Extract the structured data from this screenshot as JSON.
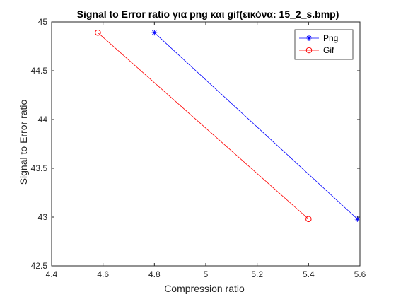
{
  "chart_data": {
    "type": "line",
    "title": "Signal to Error ratio για png και gif(εικόνα: 15_2_s.bmp)",
    "xlabel": "Compression ratio",
    "ylabel": "Signal to Error ratio",
    "xlim": [
      4.4,
      5.6
    ],
    "ylim": [
      42.5,
      45
    ],
    "xticks": [
      "4.4",
      "4.6",
      "4.8",
      "5",
      "5.2",
      "5.4",
      "5.6"
    ],
    "yticks": [
      "42.5",
      "43",
      "43.5",
      "44",
      "44.5",
      "45"
    ],
    "grid": false,
    "legend_position": "top-right",
    "series": [
      {
        "name": "Png",
        "color": "#0000ff",
        "marker": "asterisk",
        "x": [
          4.8,
          5.59
        ],
        "y": [
          44.89,
          42.98
        ]
      },
      {
        "name": "Gif",
        "color": "#ff0000",
        "marker": "circle",
        "x": [
          4.58,
          5.4
        ],
        "y": [
          44.89,
          42.98
        ]
      }
    ]
  }
}
